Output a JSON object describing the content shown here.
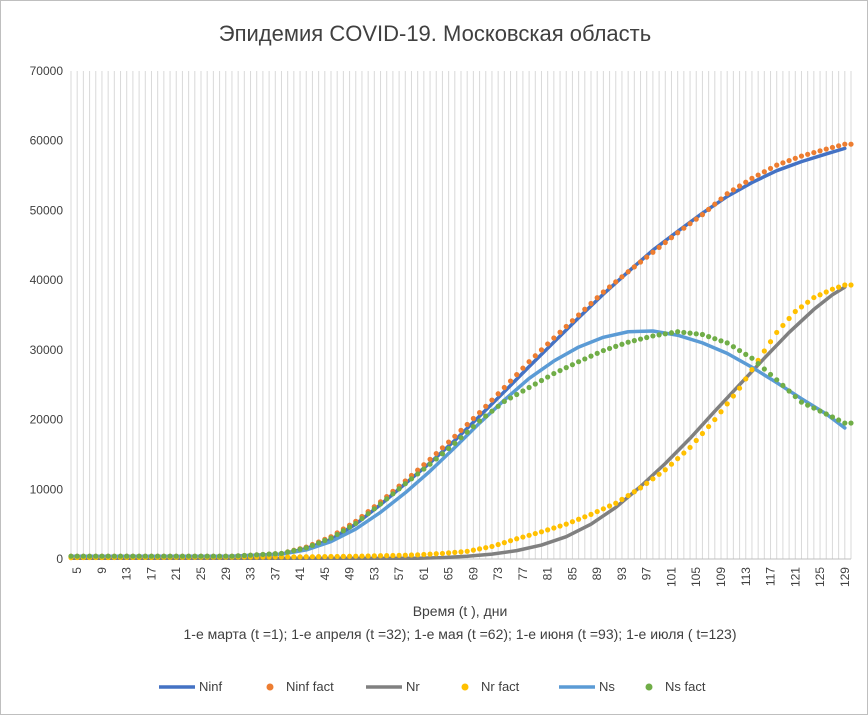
{
  "chart_data": {
    "type": "line",
    "title": "Эпидемия COVID-19. Московская область",
    "xlabel": "Время (t ), дни",
    "xlabel_sub": "1-е марта (t =1); 1-е апреля (t =32); 1-е мая (t =62); 1-е июня (t =93); 1-е июля ( t=123)",
    "xlim": [
      4,
      130
    ],
    "ylim": [
      0,
      70000
    ],
    "yticks": [
      0,
      10000,
      20000,
      30000,
      40000,
      50000,
      60000,
      70000
    ],
    "ytick_labels": [
      "0",
      "10000",
      "20000",
      "30000",
      "40000",
      "50000",
      "60000",
      "70000"
    ],
    "xticks": [
      5,
      9,
      13,
      17,
      21,
      25,
      29,
      33,
      37,
      41,
      45,
      49,
      53,
      57,
      61,
      65,
      69,
      73,
      77,
      81,
      85,
      89,
      93,
      97,
      101,
      105,
      109,
      113,
      117,
      121,
      125,
      129
    ],
    "xtick_labels": [
      "5",
      "9",
      "13",
      "17",
      "21",
      "25",
      "29",
      "33",
      "37",
      "41",
      "45",
      "49",
      "53",
      "57",
      "61",
      "65",
      "69",
      "73",
      "77",
      "81",
      "85",
      "89",
      "93",
      "97",
      "101",
      "105",
      "109",
      "113",
      "117",
      "121",
      "125",
      "129"
    ],
    "grid": "vertical",
    "legend_position": "bottom",
    "series": [
      {
        "name": "Ninf",
        "kind": "line",
        "color": "#4472C4",
        "x": [
          4,
          30,
          38,
          42,
          46,
          50,
          54,
          58,
          62,
          66,
          70,
          74,
          78,
          82,
          86,
          90,
          94,
          98,
          102,
          106,
          110,
          114,
          118,
          122,
          126,
          129
        ],
        "values": [
          400,
          400,
          700,
          1500,
          2800,
          5000,
          7800,
          10800,
          13800,
          17000,
          20500,
          24000,
          27600,
          31100,
          34600,
          38000,
          41200,
          44300,
          47000,
          49600,
          52000,
          54000,
          55700,
          57000,
          58100,
          58900
        ]
      },
      {
        "name": "Ninf fact",
        "kind": "scatter",
        "color": "#ED7D31",
        "x": [
          4,
          30,
          38,
          42,
          46,
          50,
          54,
          58,
          62,
          66,
          70,
          74,
          78,
          82,
          86,
          90,
          94,
          98,
          102,
          106,
          110,
          114,
          118,
          122,
          126,
          129
        ],
        "values": [
          400,
          400,
          800,
          1700,
          3200,
          5400,
          8200,
          11200,
          14300,
          17600,
          21000,
          24600,
          28300,
          31700,
          35000,
          38300,
          41200,
          44000,
          46800,
          49400,
          52400,
          54600,
          56500,
          57800,
          58800,
          59500
        ]
      },
      {
        "name": "Nr",
        "kind": "line",
        "color": "#808080",
        "x": [
          4,
          60,
          64,
          68,
          72,
          76,
          80,
          84,
          88,
          92,
          96,
          100,
          104,
          108,
          112,
          116,
          120,
          124,
          127,
          129
        ],
        "values": [
          100,
          100,
          200,
          400,
          700,
          1200,
          2000,
          3200,
          5000,
          7400,
          10400,
          13700,
          17300,
          21200,
          25000,
          28800,
          32500,
          35800,
          37900,
          39000
        ]
      },
      {
        "name": "Nr fact",
        "kind": "scatter",
        "color": "#FFC000",
        "x": [
          4,
          40,
          50,
          56,
          60,
          64,
          68,
          72,
          76,
          80,
          84,
          88,
          92,
          96,
          100,
          104,
          108,
          112,
          115,
          118,
          121,
          124,
          127,
          129
        ],
        "values": [
          200,
          300,
          400,
          500,
          600,
          800,
          1100,
          1800,
          2900,
          3900,
          5000,
          6400,
          8000,
          10200,
          12800,
          16000,
          20000,
          24500,
          28500,
          32500,
          35500,
          37500,
          38700,
          39300
        ]
      },
      {
        "name": "Ns",
        "kind": "line",
        "color": "#5B9BD5",
        "x": [
          4,
          30,
          38,
          42,
          46,
          50,
          54,
          58,
          62,
          66,
          70,
          74,
          78,
          82,
          86,
          90,
          94,
          98,
          102,
          106,
          110,
          114,
          118,
          122,
          126,
          129
        ],
        "values": [
          400,
          400,
          700,
          1300,
          2500,
          4300,
          6700,
          9500,
          12600,
          16000,
          19500,
          22800,
          25900,
          28400,
          30400,
          31800,
          32600,
          32700,
          32100,
          31000,
          29500,
          27500,
          25300,
          23000,
          20800,
          18800
        ]
      },
      {
        "name": "Ns fact",
        "kind": "scatter",
        "color": "#70AD47",
        "x": [
          4,
          30,
          38,
          42,
          46,
          50,
          54,
          58,
          62,
          66,
          70,
          74,
          78,
          82,
          86,
          90,
          94,
          98,
          102,
          106,
          110,
          114,
          118,
          122,
          126,
          129
        ],
        "values": [
          400,
          400,
          800,
          1600,
          3000,
          5100,
          7900,
          10800,
          13600,
          16600,
          19800,
          22600,
          24600,
          26600,
          28300,
          29900,
          31100,
          32000,
          32600,
          32200,
          31000,
          28800,
          25700,
          22500,
          20800,
          19500
        ]
      }
    ]
  }
}
